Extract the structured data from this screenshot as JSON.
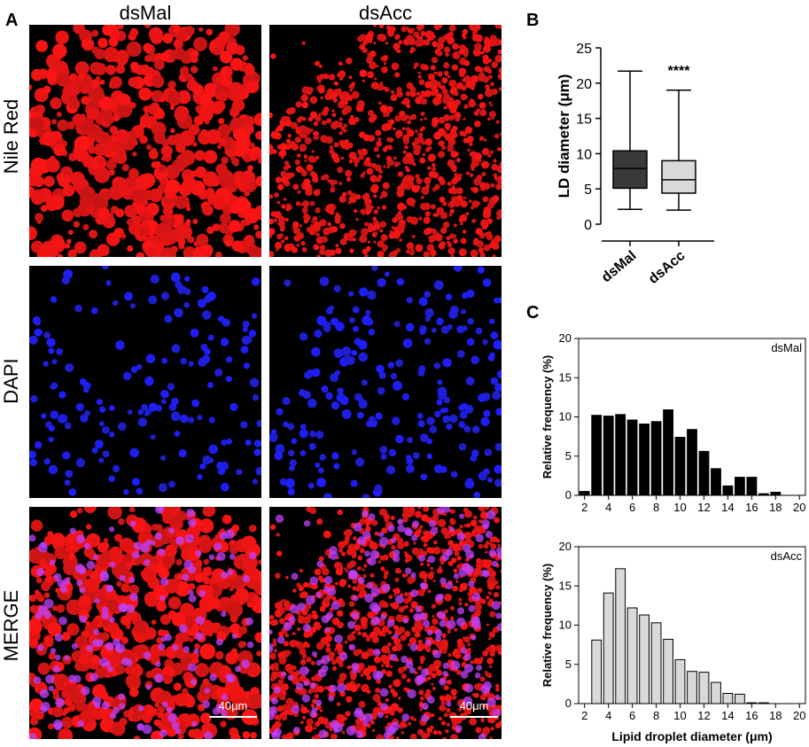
{
  "panels": {
    "a": "A",
    "b": "B",
    "c": "C"
  },
  "panel_a": {
    "columns": [
      "dsMal",
      "dsAcc"
    ],
    "rows": [
      "Nile Red",
      "DAPI",
      "MERGE"
    ],
    "scale_bar_label": "40μm",
    "colors": {
      "nile_red": "#ff1a1a",
      "dapi": "#1a1aff",
      "merge_magenta": "#c040ff",
      "background": "#000000"
    }
  },
  "chart_data": [
    {
      "panel": "B",
      "type": "box",
      "ylabel": "LD diameter (μm)",
      "ylim": [
        0,
        25
      ],
      "yticks": [
        0,
        5,
        10,
        15,
        20,
        25
      ],
      "categories": [
        "dsMal",
        "dsAcc"
      ],
      "boxes": [
        {
          "name": "dsMal",
          "min": 2.1,
          "q1": 5.1,
          "median": 7.9,
          "q3": 10.4,
          "max": 21.7,
          "color": "#3a3a3a"
        },
        {
          "name": "dsAcc",
          "min": 2.0,
          "q1": 4.4,
          "median": 6.3,
          "q3": 9.0,
          "max": 19.0,
          "color": "#d9d9d9"
        }
      ],
      "annotation": "****"
    },
    {
      "panel": "C",
      "type": "bar",
      "label": "dsMal",
      "ylabel": "Relative frequency (%)",
      "ylim": [
        0,
        20
      ],
      "yticks": [
        0,
        5,
        10,
        15,
        20
      ],
      "xlim": [
        1.5,
        20.5
      ],
      "xticks": [
        2,
        4,
        6,
        8,
        10,
        12,
        14,
        16,
        18,
        20
      ],
      "x": [
        2,
        3,
        4,
        5,
        6,
        7,
        8,
        9,
        10,
        11,
        12,
        13,
        14,
        15,
        16,
        17,
        18,
        19,
        20
      ],
      "values": [
        0.5,
        10.2,
        10.1,
        10.3,
        9.6,
        9.1,
        9.4,
        10.9,
        7.4,
        8.4,
        5.6,
        3.4,
        1.2,
        2.3,
        2.3,
        0.2,
        0.4,
        0,
        0
      ],
      "color": "#000000"
    },
    {
      "panel": "C",
      "type": "bar",
      "label": "dsAcc",
      "ylabel": "Relative frequency (%)",
      "xlabel": "Lipid droplet diameter (μm)",
      "ylim": [
        0,
        20
      ],
      "yticks": [
        0,
        5,
        10,
        15,
        20
      ],
      "xlim": [
        1.5,
        20.5
      ],
      "xticks": [
        2,
        4,
        6,
        8,
        10,
        12,
        14,
        16,
        18,
        20
      ],
      "x": [
        2,
        3,
        4,
        5,
        6,
        7,
        8,
        9,
        10,
        11,
        12,
        13,
        14,
        15,
        16,
        17,
        18,
        19,
        20
      ],
      "values": [
        0,
        8.1,
        14.1,
        17.2,
        12.2,
        11.3,
        10.3,
        8.2,
        5.6,
        4.1,
        4.0,
        2.7,
        1.3,
        1.2,
        0.1,
        0.1,
        0,
        0,
        0
      ],
      "color": "#d9d9d9"
    }
  ]
}
